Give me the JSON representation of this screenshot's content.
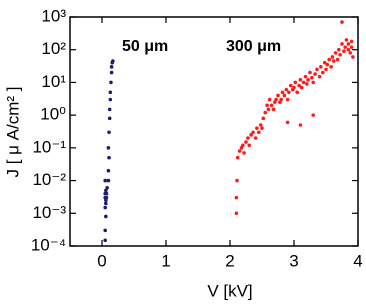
{
  "chart_data": {
    "type": "scatter",
    "xlabel": "V [kV]",
    "ylabel": "J [ μ A/cm² ]",
    "annotations": [
      "50 μm",
      "300 μm"
    ],
    "xlim": [
      -0.5,
      4
    ],
    "xticks": [
      0,
      1,
      2,
      3,
      4
    ],
    "ylim": [
      0.0001,
      1000
    ],
    "yscale": "log",
    "yticks": [
      {
        "value": 0.0001,
        "label": "10⁻⁴"
      },
      {
        "value": 0.001,
        "label": "10⁻³"
      },
      {
        "value": 0.01,
        "label": "10⁻²"
      },
      {
        "value": 0.1,
        "label": "10⁻¹"
      },
      {
        "value": 1,
        "label": "10⁰"
      },
      {
        "value": 10,
        "label": "10¹"
      },
      {
        "value": 100,
        "label": "10²"
      },
      {
        "value": 1000,
        "label": "10³"
      }
    ],
    "series": [
      {
        "name": "50 μm",
        "color": "#1c1c70",
        "x": [
          0.05,
          0.05,
          0.06,
          0.05,
          0.06,
          0.05,
          0.07,
          0.06,
          0.05,
          0.07,
          0.06,
          0.08,
          0.05,
          0.1,
          0.1,
          0.11,
          0.1,
          0.11,
          0.12,
          0.12,
          0.13,
          0.13,
          0.14,
          0.15,
          0.15,
          0.16,
          0.17
        ],
        "values": [
          0.00015,
          0.0003,
          0.0008,
          0.0015,
          0.002,
          0.003,
          0.004,
          0.005,
          0.004,
          0.003,
          0.0025,
          0.006,
          0.01,
          0.01,
          0.02,
          0.05,
          0.1,
          0.3,
          0.8,
          1.5,
          3,
          5,
          10,
          20,
          30,
          40,
          45
        ]
      },
      {
        "name": "300 μm",
        "color": "#ff1a1a",
        "x": [
          2.1,
          2.1,
          2.11,
          2.12,
          2.15,
          2.18,
          2.2,
          2.22,
          2.25,
          2.28,
          2.3,
          2.33,
          2.36,
          2.4,
          2.42,
          2.45,
          2.48,
          2.5,
          2.52,
          2.55,
          2.58,
          2.6,
          2.62,
          2.65,
          2.68,
          2.7,
          2.72,
          2.75,
          2.78,
          2.8,
          2.82,
          2.85,
          2.88,
          2.9,
          2.92,
          2.95,
          2.98,
          3.0,
          3.02,
          3.05,
          3.08,
          3.1,
          3.12,
          3.15,
          3.18,
          3.2,
          3.22,
          3.25,
          3.28,
          3.3,
          3.33,
          3.36,
          3.4,
          3.42,
          3.45,
          3.48,
          3.5,
          3.52,
          3.55,
          3.58,
          3.6,
          3.62,
          3.65,
          3.68,
          3.7,
          3.72,
          3.75,
          3.75,
          3.78,
          3.8,
          3.82,
          3.85,
          3.85,
          3.88,
          3.9,
          3.9,
          3.92,
          3.1,
          2.9,
          3.3
        ],
        "values": [
          0.001,
          0.003,
          0.01,
          0.05,
          0.08,
          0.1,
          0.12,
          0.07,
          0.15,
          0.2,
          0.12,
          0.25,
          0.3,
          0.2,
          0.4,
          0.3,
          0.5,
          0.4,
          0.8,
          1.2,
          2,
          1.5,
          3,
          2,
          1.5,
          2.5,
          3,
          4,
          2.5,
          3,
          5,
          4,
          6,
          3,
          5,
          8,
          6,
          7,
          10,
          5,
          8,
          12,
          7,
          10,
          15,
          9,
          12,
          20,
          14,
          10,
          18,
          25,
          15,
          30,
          20,
          40,
          25,
          35,
          50,
          30,
          60,
          45,
          80,
          50,
          100,
          70,
          150,
          700,
          90,
          120,
          200,
          100,
          150,
          80,
          180,
          120,
          60,
          0.5,
          0.6,
          1
        ]
      }
    ]
  }
}
